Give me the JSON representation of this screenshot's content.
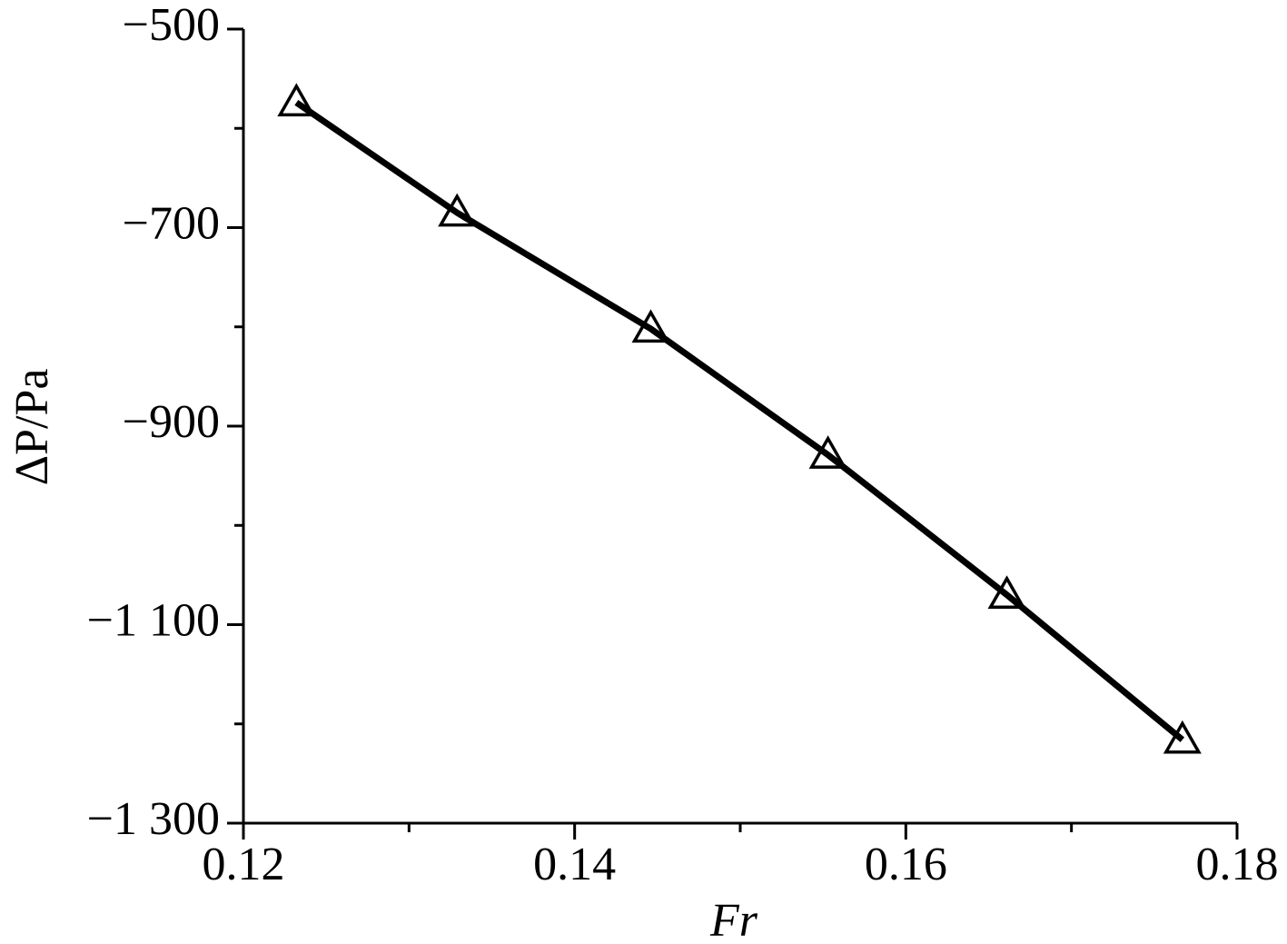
{
  "chart_data": {
    "type": "line",
    "xlabel": "Fr",
    "ylabel": "ΔP/Pa",
    "x": [
      0.1232,
      0.1329,
      0.1446,
      0.1553,
      0.1661,
      0.1767
    ],
    "series": [
      {
        "color": "#000000",
        "marker": "triangle-open",
        "values": [
          -574,
          -685,
          -802,
          -929,
          -1070,
          -1216
        ]
      }
    ],
    "xlim": [
      0.12,
      0.18
    ],
    "xticks": [
      0.12,
      0.14,
      0.16,
      0.18
    ],
    "xminor_ticks": [
      0.13,
      0.15,
      0.17
    ],
    "ylim": [
      -1300,
      -500
    ],
    "yticks": [
      {
        "value": -500,
        "label": "−500"
      },
      {
        "value": -700,
        "label": "−700"
      },
      {
        "value": -900,
        "label": "−900"
      },
      {
        "value": -1100,
        "label": "−1 100"
      },
      {
        "value": -1300,
        "label": "−1 300"
      }
    ],
    "yminor_ticks": [
      -600,
      -800,
      -1000,
      -1200
    ],
    "grid": false
  }
}
